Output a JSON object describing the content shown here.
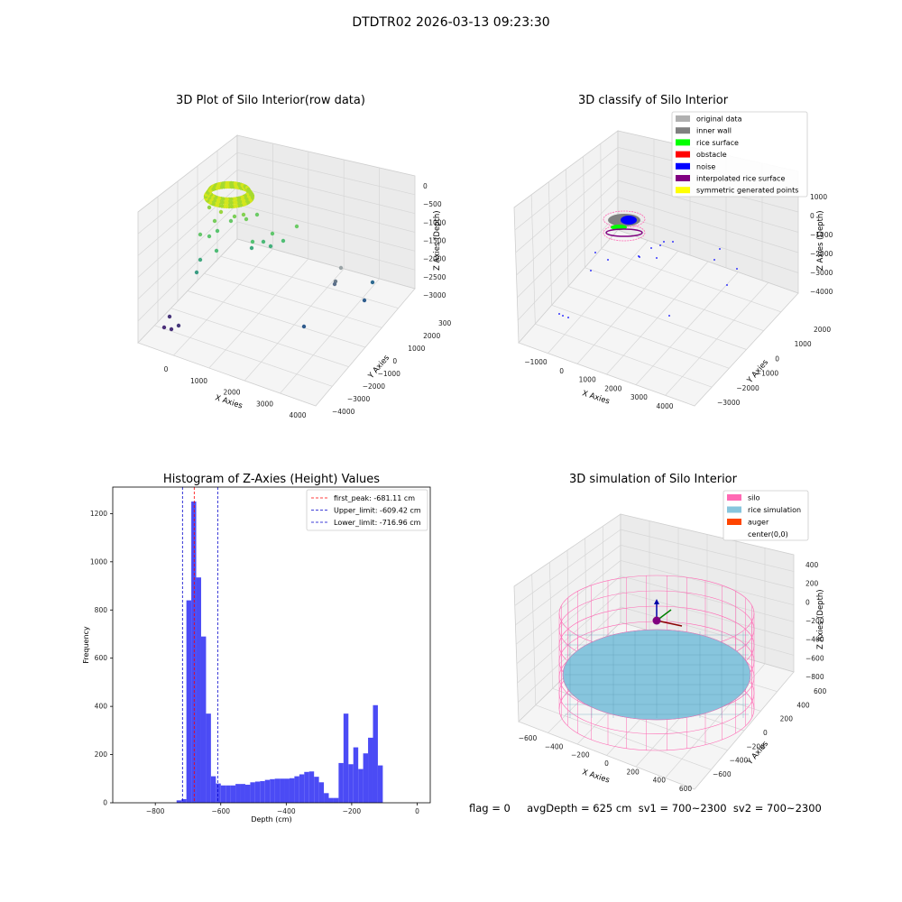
{
  "figure": {
    "suptitle": "DTDTR02 2026-03-13 09:23:30",
    "footer": "flag = 0     avgDepth = 625 cm  sv1 = 700~2300  sv2 = 700~2300"
  },
  "colors": {
    "hist_bar": "#4b4bf5",
    "peak_line": "#ff0000",
    "limit_line": "#0000cc",
    "silo_wire": "#ff69b4",
    "rice_sim": "#87c5dd",
    "auger": "#ff4500",
    "pane_wall": "#f2f2f2"
  },
  "chart_data": [
    {
      "type": "scatter",
      "title": "3D Plot of Silo Interior(row data)",
      "xlabel": "X Axies",
      "ylabel": "Y Axies",
      "zlabel": "Z Axies (Depth)",
      "x_ticks": [
        "0",
        "1000",
        "2000",
        "3000",
        "4000"
      ],
      "y_ticks": [
        "−4000",
        "−3000",
        "−2000",
        "−1000",
        "0",
        "1000",
        "2000",
        "3000"
      ],
      "z_ticks": [
        "0",
        "−500",
        "−1000",
        "−1500",
        "−2000",
        "−2500",
        "−3000"
      ]
    },
    {
      "type": "scatter",
      "title": "3D classify of Silo Interior",
      "xlabel": "X Axies",
      "ylabel": "Y Axies",
      "zlabel": "Z Axies (Depth)",
      "x_ticks": [
        "−1000",
        "0",
        "1000",
        "2000",
        "3000",
        "4000"
      ],
      "y_ticks": [
        "−3000",
        "−2000",
        "−1000",
        "0",
        "1000",
        "2000"
      ],
      "z_ticks": [
        "1000",
        "0",
        "−1000",
        "−2000",
        "−3000",
        "−4000"
      ],
      "legend": [
        {
          "label": "original data",
          "color": "#b0b0b0"
        },
        {
          "label": "inner wall",
          "color": "#808080"
        },
        {
          "label": "rice surface",
          "color": "#00ff00"
        },
        {
          "label": "obstacle",
          "color": "#ff0000"
        },
        {
          "label": "noise",
          "color": "#0000ff"
        },
        {
          "label": "interpolated rice surface",
          "color": "#800080"
        },
        {
          "label": "symmetric generated points",
          "color": "#ffff00"
        }
      ],
      "legend_position": "top-right"
    },
    {
      "type": "bar",
      "title": "Histogram of Z-Axies (Height) Values",
      "xlabel": "Depth (cm)",
      "ylabel": "Frequency",
      "xlim": [
        -930,
        40
      ],
      "ylim": [
        0,
        1310
      ],
      "x_ticks": [
        -800,
        -600,
        -400,
        -200,
        0
      ],
      "x_tick_labels": [
        "−800",
        "−600",
        "−400",
        "−200",
        "0"
      ],
      "y_ticks": [
        0,
        200,
        400,
        600,
        800,
        1000,
        1200
      ],
      "bin_width": 15,
      "bin_starts": [
        -735,
        -720,
        -705,
        -690,
        -675,
        -660,
        -645,
        -630,
        -615,
        -600,
        -585,
        -570,
        -555,
        -540,
        -525,
        -510,
        -495,
        -480,
        -465,
        -450,
        -435,
        -420,
        -405,
        -390,
        -375,
        -360,
        -345,
        -330,
        -315,
        -300,
        -285,
        -270,
        -255,
        -240,
        -225,
        -210,
        -195,
        -180,
        -165,
        -150,
        -135,
        -120,
        -105,
        -90,
        -75,
        -60,
        -45,
        -30,
        -15
      ],
      "values": [
        10,
        15,
        840,
        1250,
        935,
        690,
        370,
        110,
        80,
        72,
        72,
        72,
        78,
        78,
        75,
        85,
        88,
        90,
        95,
        98,
        100,
        100,
        100,
        102,
        110,
        118,
        128,
        130,
        108,
        85,
        40,
        20,
        20,
        165,
        370,
        160,
        230,
        140,
        205,
        270,
        405,
        155,
        0,
        0,
        0,
        0,
        0,
        0,
        0
      ],
      "vlines": [
        {
          "label": "first_peak: -681.11 cm",
          "x": -681.11,
          "style": "dashed",
          "color": "#ff0000"
        },
        {
          "label": "Upper_limit: -609.42 cm",
          "x": -609.42,
          "style": "dashed",
          "color": "#0000cc"
        },
        {
          "label": "Lower_limit: -716.96 cm",
          "x": -716.96,
          "style": "dashed",
          "color": "#0000cc"
        }
      ],
      "legend_position": "top-right"
    },
    {
      "type": "scatter",
      "title": "3D simulation of Silo Interior",
      "xlabel": "X Axies",
      "ylabel": "Y Axies",
      "zlabel": "Z Axies (Depth)",
      "x_ticks": [
        "−600",
        "−400",
        "−200",
        "0",
        "200",
        "400",
        "600"
      ],
      "y_ticks": [
        "−600",
        "−400",
        "−200",
        "0",
        "200",
        "400",
        "600"
      ],
      "z_ticks": [
        "400",
        "200",
        "0",
        "−200",
        "−400",
        "−600",
        "−800"
      ],
      "legend": [
        {
          "label": "silo",
          "color": "#ff69b4"
        },
        {
          "label": "rice simulation",
          "color": "#87c5dd"
        },
        {
          "label": "auger",
          "color": "#ff4500"
        },
        {
          "label": "center(0,0)",
          "color": ""
        }
      ],
      "legend_position": "top-right"
    }
  ]
}
